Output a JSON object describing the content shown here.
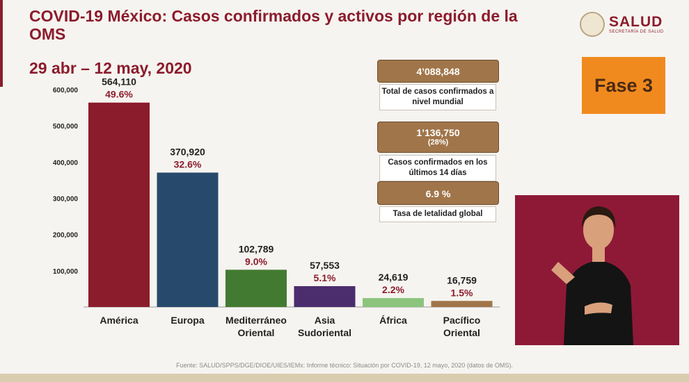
{
  "header": {
    "title": "COVID-19 México: Casos confirmados y activos por región de la OMS",
    "subtitle": "29 abr – 12 may, 2020"
  },
  "logo": {
    "name": "SALUD",
    "tagline": "SECRETARÍA DE SALUD"
  },
  "chart_data": {
    "type": "bar",
    "title": "",
    "xlabel": "",
    "ylabel": "",
    "ylim": [
      0,
      600000
    ],
    "yticks": [
      "600,000",
      "500,000",
      "400,000",
      "300,000",
      "200,000",
      "100,000"
    ],
    "grid": false,
    "legend": "none",
    "categories": [
      [
        "América"
      ],
      [
        "Europa"
      ],
      [
        "Mediterráneo",
        "Oriental"
      ],
      [
        "Asia",
        "Sudoriental"
      ],
      [
        "África"
      ],
      [
        "Pacífico",
        "Oriental"
      ]
    ],
    "values": [
      564110,
      370920,
      102789,
      57553,
      24619,
      16759
    ],
    "value_labels": [
      "564,110",
      "370,920",
      "102,789",
      "57,553",
      "24,619",
      "16,759"
    ],
    "percent_labels": [
      "49.6%",
      "32.6%",
      "9.0%",
      "5.1%",
      "2.2%",
      "1.5%"
    ],
    "colors": [
      "#8b1c2c",
      "#274a6c",
      "#437a31",
      "#4b2d6e",
      "#8cc47d",
      "#a1754a"
    ]
  },
  "stats": {
    "total_value": "4’088,848",
    "total_label": "Total de casos confirmados a nivel mundial",
    "recent_value": "1’136,750",
    "recent_pct": "(28%)",
    "recent_label": "Casos confirmados en los últimos 14 días",
    "lethality_value": "6.9 %",
    "lethality_label": "Tasa de letalidad global"
  },
  "phase": "Fase 3",
  "footer": "Fuente: SALUD/SPPS/DGE/DIOE/UIES/IEMx: Informe técnico: Situación por COVID-19, 12 mayo, 2020 (datos de OMS).",
  "colors": {
    "primary": "#8b1c2c",
    "gold": "#a1754a",
    "orange": "#f08a1e"
  }
}
